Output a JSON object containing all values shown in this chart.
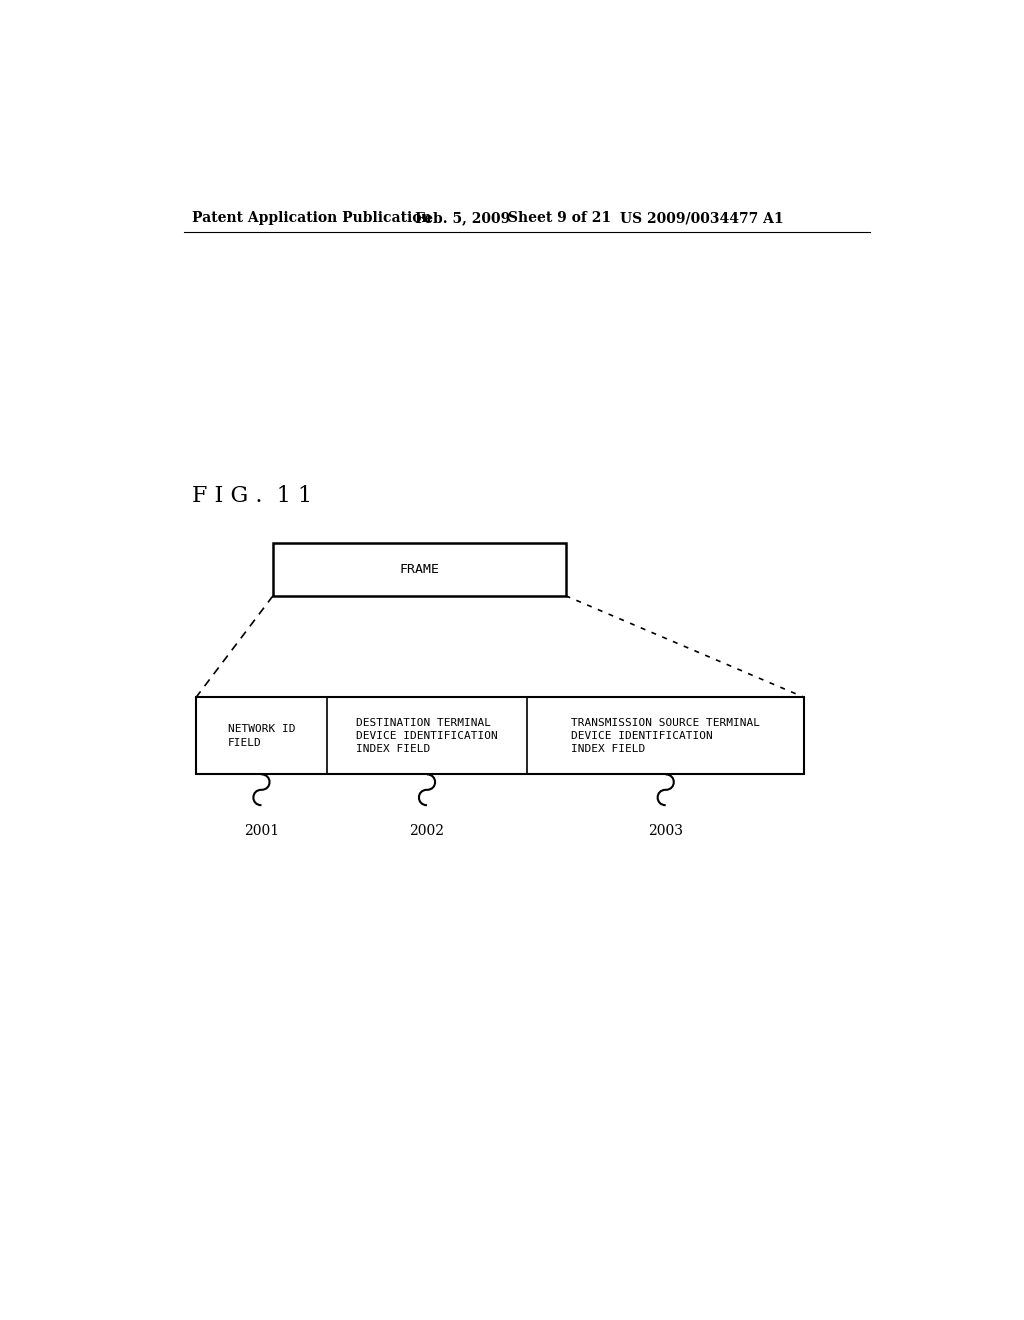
{
  "background_color": "#ffffff",
  "header_text1": "Patent Application Publication",
  "header_text2": "Feb. 5, 2009",
  "header_text3": "Sheet 9 of 21",
  "header_text4": "US 2009/0034477 A1",
  "fig_label": "F I G .  1 1",
  "frame_label": "FRAME",
  "cell1_label": "NETWORK ID\nFIELD",
  "cell2_label": "DESTINATION TERMINAL\nDEVICE IDENTIFICATION\nINDEX FIELD",
  "cell3_label": "TRANSMISSION SOURCE TERMINAL\nDEVICE IDENTIFICATION\nINDEX FIELD",
  "ref1": "2001",
  "ref2": "2002",
  "ref3": "2003",
  "text_color": "#000000",
  "fontsize_header": 10,
  "fontsize_fig": 16,
  "fontsize_frame": 9.5,
  "fontsize_cell": 8,
  "fontsize_ref": 10
}
